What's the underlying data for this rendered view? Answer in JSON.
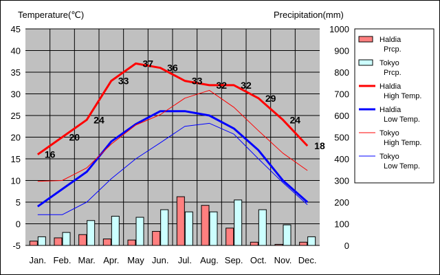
{
  "chart_data": {
    "type": "bar-line",
    "categories": [
      "Jan.",
      "Feb.",
      "Mar.",
      "Apr.",
      "May",
      "Jun.",
      "Jul.",
      "Aug.",
      "Sep.",
      "Oct.",
      "Nov.",
      "Dec."
    ],
    "left_axis": {
      "label": "Temperature(℃)",
      "range": [
        -5,
        45
      ],
      "ticks": [
        -5,
        0,
        5,
        10,
        15,
        20,
        25,
        30,
        35,
        40,
        45
      ]
    },
    "right_axis": {
      "label": "Precipitation(mm)",
      "range": [
        0,
        1000
      ],
      "ticks": [
        0,
        100,
        200,
        300,
        400,
        500,
        600,
        700,
        800,
        900,
        1000
      ]
    },
    "grid": true,
    "plot_background": "#c0c0c0",
    "legend_position": "right",
    "bars": [
      {
        "name": "Haldia Prcp.",
        "legend": [
          "Haldia",
          "Prcp."
        ],
        "color": "#ff7f7f",
        "values": [
          20,
          35,
          50,
          30,
          25,
          65,
          225,
          185,
          80,
          15,
          5,
          15
        ]
      },
      {
        "name": "Tokyo Prcp.",
        "legend": [
          "Tokyo",
          "Prcp."
        ],
        "color": "#ccffff",
        "values": [
          40,
          60,
          115,
          135,
          130,
          165,
          155,
          155,
          210,
          165,
          95,
          40
        ]
      }
    ],
    "lines": [
      {
        "name": "Haldia High Temp.",
        "legend": [
          "Haldia",
          "High Temp."
        ],
        "color": "#ff0000",
        "width": 3,
        "values": [
          16,
          20,
          24,
          33,
          37,
          36,
          33,
          32,
          32,
          29,
          24,
          18
        ],
        "labels": [
          "16",
          "20",
          "24",
          "33",
          "37",
          "36",
          "33",
          "32",
          "32",
          "29",
          "24",
          "18"
        ]
      },
      {
        "name": "Haldia Low Temp.",
        "legend": [
          "Haldia",
          "Low Temp."
        ],
        "color": "#0000ff",
        "width": 3,
        "values": [
          4,
          8,
          12,
          19,
          23,
          26,
          26,
          25,
          22,
          17,
          10,
          5
        ]
      },
      {
        "name": "Tokyo High Temp.",
        "legend": [
          "Tokyo",
          "High Temp."
        ],
        "color": "#ff0000",
        "width": 1,
        "values": [
          9.8,
          10,
          12.9,
          18.4,
          22.8,
          25.2,
          29,
          30.8,
          26.9,
          21.5,
          16.3,
          12.3
        ]
      },
      {
        "name": "Tokyo Low Temp.",
        "legend": [
          "Tokyo",
          "Low Temp."
        ],
        "color": "#0000ff",
        "width": 1,
        "values": [
          2.1,
          2.1,
          5,
          10.4,
          15,
          18.7,
          22.5,
          23.2,
          20.7,
          15,
          9.5,
          4.4
        ]
      }
    ]
  }
}
